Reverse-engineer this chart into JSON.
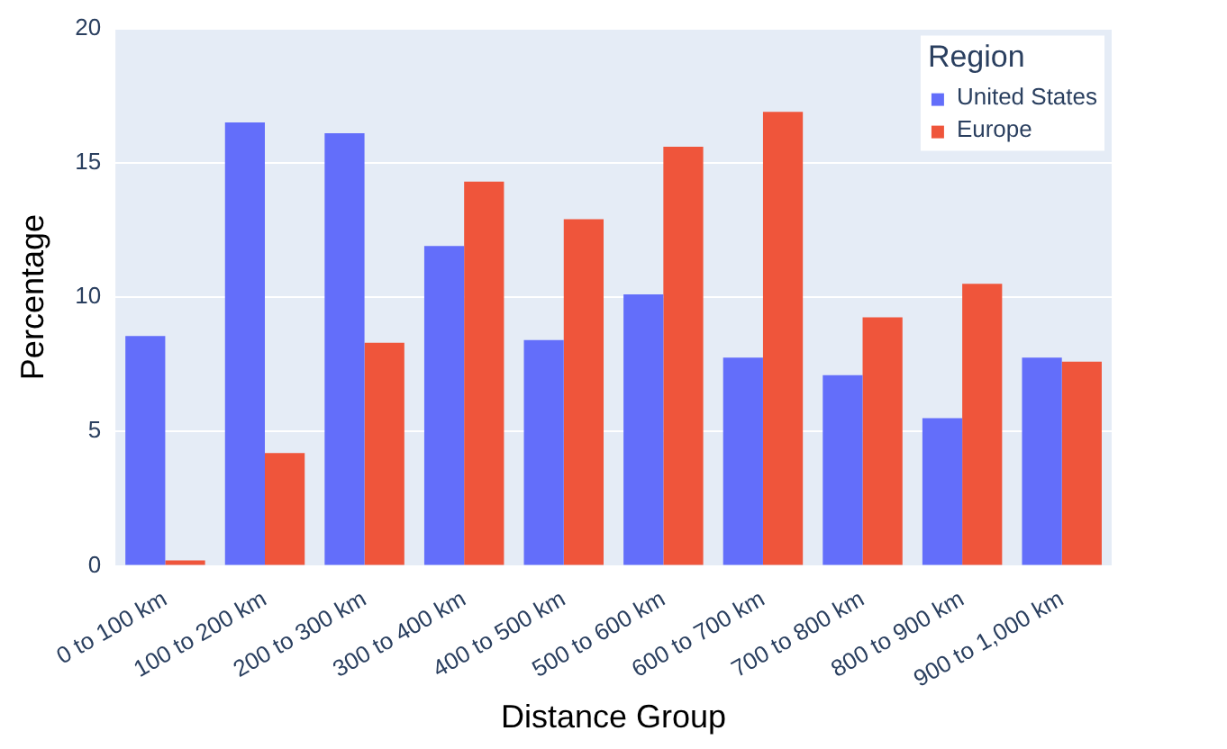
{
  "chart_data": {
    "type": "bar",
    "xlabel": "Distance Group",
    "ylabel": "Percentage",
    "legend_title": "Region",
    "categories": [
      "0 to 100 km",
      "100 to 200 km",
      "200 to 300 km",
      "300 to 400 km",
      "400 to 500 km",
      "500 to 600 km",
      "600 to 700 km",
      "700 to 800 km",
      "800 to 900 km",
      "900 to 1,000 km"
    ],
    "series": [
      {
        "name": "United States",
        "color": "#636efa",
        "values": [
          8.55,
          16.5,
          16.1,
          11.9,
          8.4,
          10.1,
          7.75,
          7.1,
          5.5,
          7.75
        ]
      },
      {
        "name": "Europe",
        "color": "#ef553b",
        "values": [
          0.2,
          4.2,
          8.3,
          14.3,
          12.9,
          15.6,
          16.9,
          9.25,
          10.5,
          7.6
        ]
      }
    ],
    "ylim": [
      0,
      20
    ],
    "yticks": [
      0,
      5,
      10,
      15,
      20
    ],
    "grid": "y",
    "legend": "top right"
  }
}
